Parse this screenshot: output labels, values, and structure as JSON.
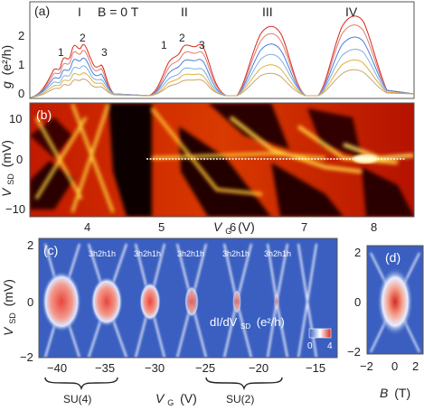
{
  "panel_a": {
    "letter": "(a)",
    "field_label": "B = 0 T",
    "ylabel_main": "g",
    "ylabel_unit": "(e²/h)",
    "yticks": [
      "0",
      "1",
      "2"
    ],
    "regions": [
      "I",
      "II",
      "III",
      "IV"
    ],
    "peaks_I": [
      "1",
      "2",
      "3"
    ],
    "peaks_II": [
      "1",
      "2",
      "3"
    ]
  },
  "panel_b": {
    "letter": "(b)",
    "ylabel_main": "V",
    "ylabel_sub": "SD",
    "ylabel_unit": "(mV)",
    "yticks": [
      "10",
      "0",
      "−10"
    ],
    "xlabel_main": "V",
    "xlabel_sub": "G",
    "xlabel_unit": "(V)",
    "xticks": [
      "4",
      "5",
      "6",
      "7",
      "8"
    ]
  },
  "panel_c": {
    "letter": "(c)",
    "ylabel_main": "V",
    "ylabel_sub": "SD",
    "ylabel_unit": "(mV)",
    "yticks": [
      "2",
      "0",
      "−2"
    ],
    "xlabel_main": "V",
    "xlabel_sub": "G",
    "xlabel_unit": "(V)",
    "xticks": [
      "−40",
      "−35",
      "−30",
      "−25",
      "−20",
      "−15"
    ],
    "harmonic_labels": [
      "3h2h1h",
      "3h2h1h",
      "3h2h1h",
      "3h2h1h"
    ],
    "colorbar_label": "dI/dV",
    "colorbar_sub": "SD",
    "colorbar_unit": "(e²/h)",
    "colorbar_ticks": [
      "0",
      "4"
    ],
    "brace_left": "SU(4)",
    "brace_right": "SU(2)"
  },
  "panel_d": {
    "letter": "(d)",
    "yticks": [
      "2",
      "0",
      "−2"
    ],
    "xticks": [
      "−2",
      "0",
      "2"
    ],
    "xlabel_main": "B",
    "xlabel_unit": "(T)"
  },
  "colors": {
    "hot_bg": "#b31200",
    "dark": "#1a0000",
    "bright": "#fff8c0",
    "blue_bg": "#3a5fc0",
    "peak_red": "#e8453a"
  }
}
